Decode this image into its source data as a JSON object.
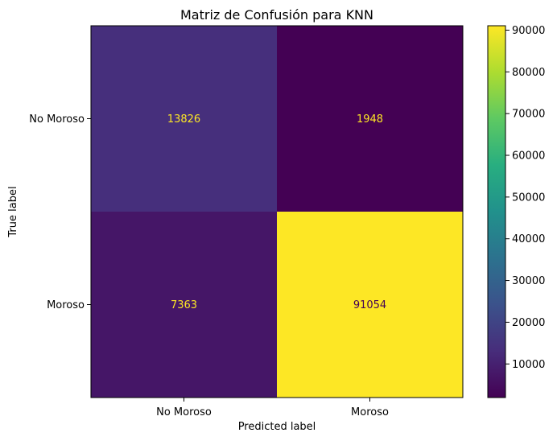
{
  "chart_data": {
    "type": "heatmap",
    "title": "Matriz de Confusión para KNN",
    "xlabel": "Predicted label",
    "ylabel": "True label",
    "x_categories": [
      "No Moroso",
      "Moroso"
    ],
    "y_categories": [
      "No Moroso",
      "Moroso"
    ],
    "values": [
      [
        13826,
        1948
      ],
      [
        7363,
        91054
      ]
    ],
    "colormap": "viridis",
    "colorbar": {
      "min": 1948,
      "max": 91054,
      "ticks": [
        10000,
        20000,
        30000,
        40000,
        50000,
        60000,
        70000,
        80000,
        90000
      ]
    },
    "grid": false,
    "label_color_on_dark": "#fde725",
    "label_color_on_light": "#440154"
  }
}
